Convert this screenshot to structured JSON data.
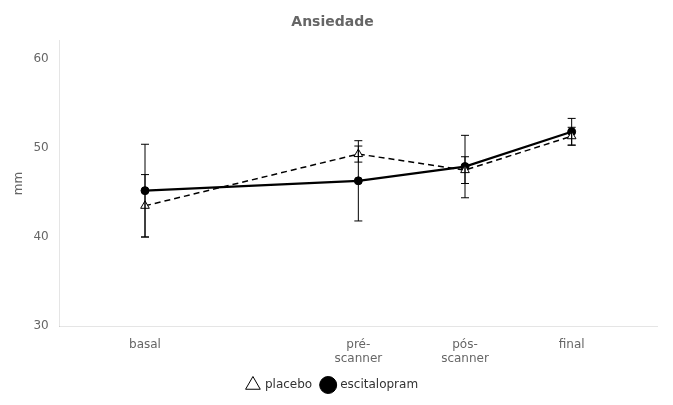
{
  "chart_data": {
    "type": "line",
    "title": "Ansiedade",
    "ylabel": "mm",
    "x": [
      1,
      3,
      4,
      5
    ],
    "xlim": [
      0.2,
      5.8
    ],
    "xticks": [
      {
        "value": 1,
        "label": "basal"
      },
      {
        "value": 3,
        "label": "pré-\nscanner"
      },
      {
        "value": 4,
        "label": "pós-\nscanner"
      },
      {
        "value": 5,
        "label": "final"
      }
    ],
    "ylim": [
      30,
      62
    ],
    "yticks": [
      30,
      40,
      50,
      60
    ],
    "grid": false,
    "legend": "bottom",
    "series": [
      {
        "name": "placebo",
        "color": "#000000",
        "marker": "triangle",
        "line_style": "dashed",
        "values": [
          43.5,
          49.3,
          47.5,
          51.3
        ],
        "errors": [
          3.5,
          0.9,
          1.5,
          1.0
        ]
      },
      {
        "name": "escitalopram",
        "color": "#000000",
        "marker": "circle",
        "line_style": "solid",
        "values": [
          45.2,
          46.3,
          47.9,
          51.8
        ],
        "errors": [
          5.2,
          4.5,
          3.5,
          1.5
        ]
      }
    ]
  }
}
